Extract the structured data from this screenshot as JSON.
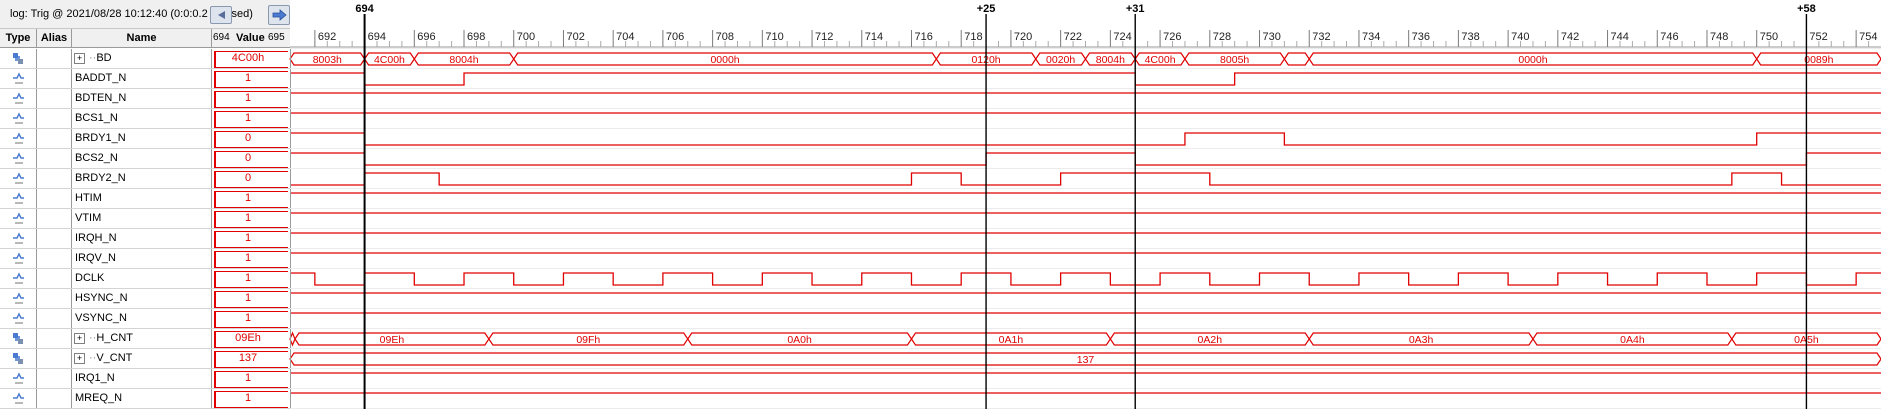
{
  "log_title": "log: Trig @ 2021/08/28 10:12:40 (0:0:0.2 elapsed)",
  "columns": {
    "type": "Type",
    "alias": "Alias",
    "name": "Name",
    "value": "Value"
  },
  "value_range": {
    "start": "694",
    "end": "695"
  },
  "colors": {
    "signal": "#e00000",
    "cursor": "#000000",
    "grid": "#ececec"
  },
  "icons": {
    "nav_left": "arrow-left-icon",
    "nav_right": "arrow-right-icon",
    "bus": "bus-icon",
    "pin": "pin-icon"
  },
  "timeline": {
    "start": 691,
    "end": 755,
    "ticks": [
      692,
      694,
      696,
      698,
      700,
      702,
      704,
      706,
      708,
      710,
      712,
      714,
      716,
      718,
      720,
      722,
      724,
      726,
      728,
      730,
      732,
      734,
      736,
      738,
      740,
      742,
      744,
      746,
      748,
      750,
      752,
      754
    ],
    "cursors": [
      {
        "t": 694,
        "label": "694"
      },
      {
        "t": 719,
        "label": "+25"
      },
      {
        "t": 725,
        "label": "+31"
      },
      {
        "t": 752,
        "label": "+58"
      }
    ]
  },
  "signals": [
    {
      "name": "BD",
      "type": "bus",
      "group": true,
      "value": "4C00h",
      "segments": [
        [
          691,
          694,
          ""
        ],
        [
          694,
          696,
          "4C00h"
        ],
        [
          696,
          700,
          "8004h"
        ],
        [
          700,
          717,
          "0000h"
        ],
        [
          717,
          721,
          "0120h"
        ],
        [
          721,
          723,
          "0020h"
        ],
        [
          723,
          725,
          "8004h"
        ],
        [
          725,
          727,
          "4C00h"
        ],
        [
          727,
          731,
          "8005h"
        ],
        [
          731,
          732,
          ""
        ],
        [
          732,
          750,
          "0000h"
        ],
        [
          750,
          755,
          "0089h"
        ]
      ],
      "pre": [
        [
          691,
          694,
          "8003h"
        ]
      ]
    },
    {
      "name": "BADDT_N",
      "type": "bit",
      "value": "1",
      "init": 1,
      "trans": [
        694,
        698,
        725,
        729
      ]
    },
    {
      "name": "BDTEN_N",
      "type": "bit",
      "value": "1",
      "init": 1,
      "trans": []
    },
    {
      "name": "BCS1_N",
      "type": "bit",
      "value": "1",
      "init": 1,
      "trans": []
    },
    {
      "name": "BRDY1_N",
      "type": "bit",
      "value": "0",
      "init": 1,
      "trans": [
        694,
        727,
        731,
        750
      ]
    },
    {
      "name": "BCS2_N",
      "type": "bit",
      "value": "0",
      "init": 1,
      "trans": [
        694,
        719,
        725,
        752
      ]
    },
    {
      "name": "BRDY2_N",
      "type": "bit",
      "value": "0",
      "init": 0,
      "trans": [
        694,
        697,
        716,
        718,
        722,
        728,
        749,
        751
      ]
    },
    {
      "name": "HTIM",
      "type": "bit",
      "value": "1",
      "init": 1,
      "trans": []
    },
    {
      "name": "VTIM",
      "type": "bit",
      "value": "1",
      "init": 1,
      "trans": []
    },
    {
      "name": "IRQH_N",
      "type": "bit",
      "value": "1",
      "init": 1,
      "trans": []
    },
    {
      "name": "IRQV_N",
      "type": "bit",
      "value": "1",
      "init": 1,
      "trans": []
    },
    {
      "name": "DCLK",
      "type": "bit",
      "value": "1",
      "init": 1,
      "trans": [
        692,
        694,
        696,
        698,
        700,
        702,
        704,
        706,
        708,
        710,
        712,
        714,
        716,
        718,
        720,
        722,
        724,
        726,
        728,
        730,
        732,
        734,
        736,
        738,
        740,
        742,
        744,
        746,
        748,
        750,
        752,
        754
      ]
    },
    {
      "name": "HSYNC_N",
      "type": "bit",
      "value": "1",
      "init": 1,
      "trans": []
    },
    {
      "name": "VSYNC_N",
      "type": "bit",
      "value": "1",
      "init": 1,
      "trans": []
    },
    {
      "name": "H_CNT",
      "type": "bus",
      "group": true,
      "value": "09Eh",
      "segments": [
        [
          691,
          691.2,
          ""
        ],
        [
          691.2,
          699,
          "09Eh"
        ],
        [
          699,
          707,
          "09Fh"
        ],
        [
          707,
          716,
          "0A0h"
        ],
        [
          716,
          724,
          "0A1h"
        ],
        [
          724,
          732,
          "0A2h"
        ],
        [
          732,
          741,
          "0A3h"
        ],
        [
          741,
          749,
          "0A4h"
        ],
        [
          749,
          755,
          "0A5h"
        ]
      ]
    },
    {
      "name": "V_CNT",
      "type": "bus",
      "group": true,
      "value": "137",
      "segments": [
        [
          691,
          755,
          "137"
        ]
      ]
    },
    {
      "name": "IRQ1_N",
      "type": "bit",
      "value": "1",
      "init": 1,
      "trans": []
    },
    {
      "name": "MREQ_N",
      "type": "bit",
      "value": "1",
      "init": 1,
      "trans": []
    }
  ]
}
